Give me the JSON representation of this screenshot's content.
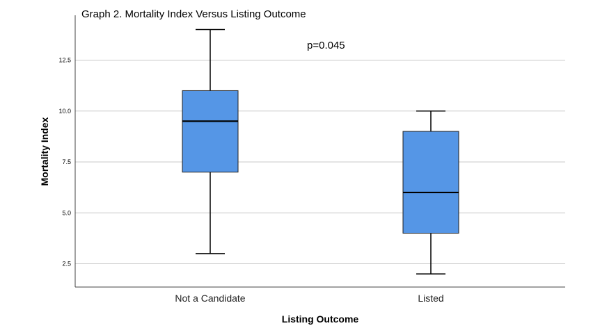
{
  "chart_data": {
    "type": "box",
    "title": "Graph 2. Mortality Index Versus Listing Outcome",
    "annotation": "p=0.045",
    "xlabel": "Listing Outcome",
    "ylabel": "Mortality Index",
    "ylim": [
      1.4,
      14.0
    ],
    "yticks": [
      2.5,
      5.0,
      7.5,
      10.0,
      12.5
    ],
    "ytick_labels": [
      "2.5",
      "5.0",
      "7.5",
      "10.0",
      "12.5"
    ],
    "grid": true,
    "box_color": "#5596e6",
    "categories": [
      "Not a Candidate",
      "Listed"
    ],
    "boxes": [
      {
        "category": "Not a Candidate",
        "min": 3.0,
        "q1": 7.0,
        "median": 9.5,
        "q3": 11.0,
        "max": 14.0
      },
      {
        "category": "Listed",
        "min": 2.0,
        "q1": 4.0,
        "median": 6.0,
        "q3": 9.0,
        "max": 10.0
      }
    ]
  }
}
